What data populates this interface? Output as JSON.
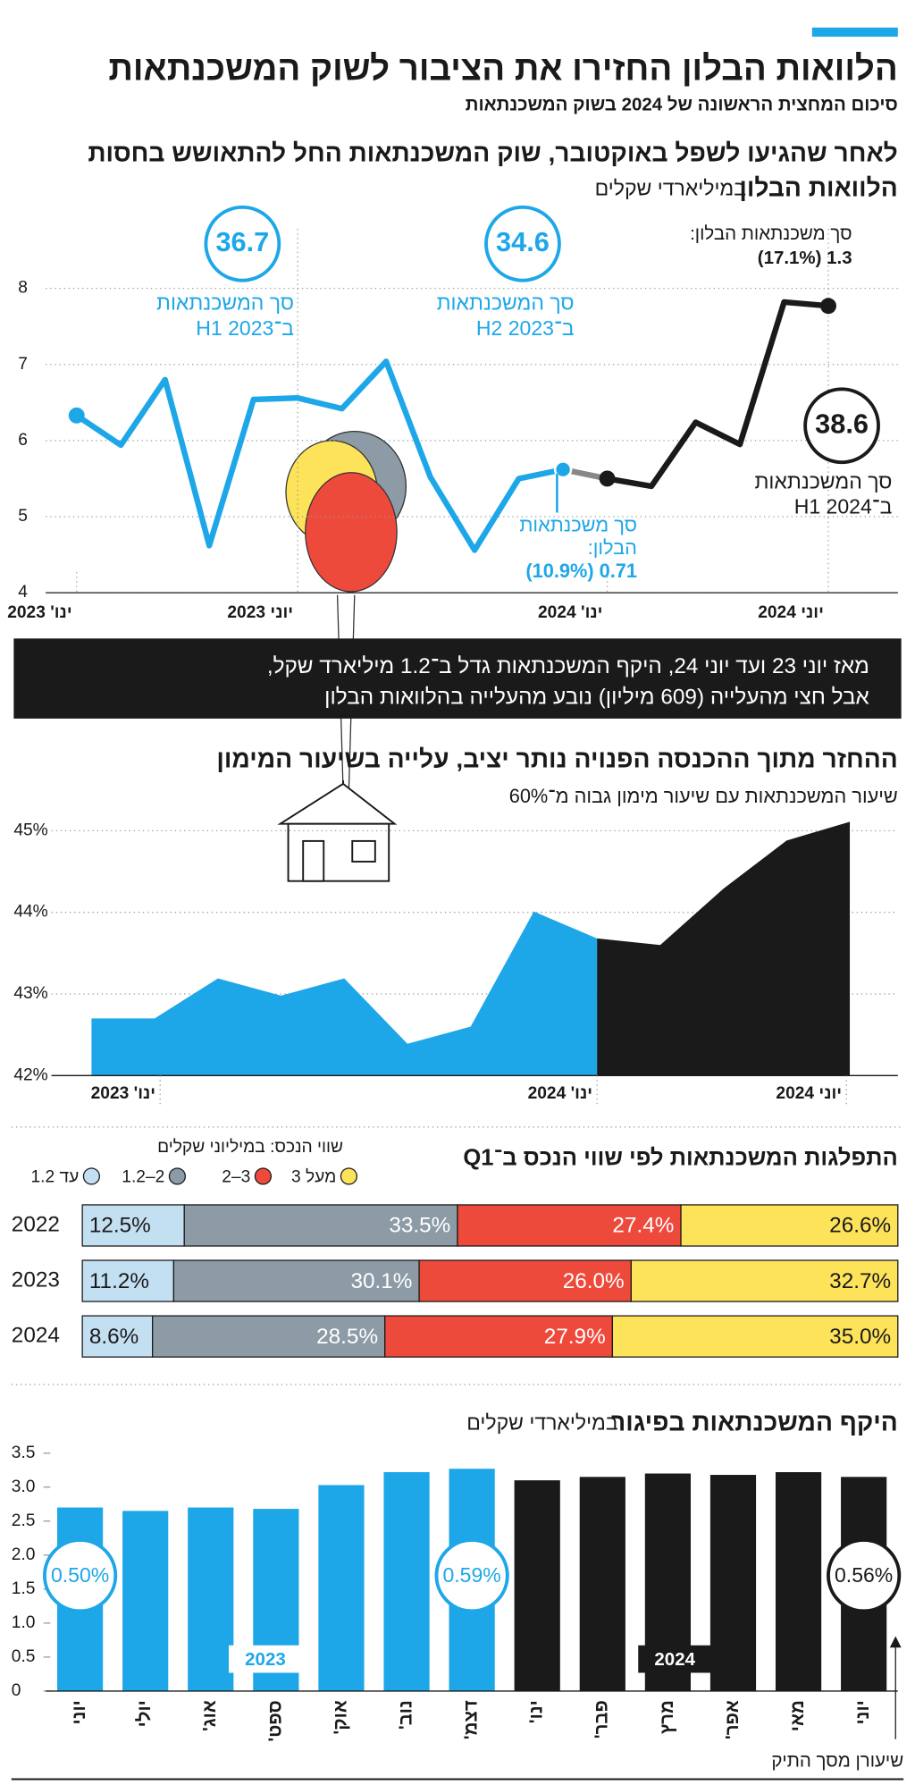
{
  "header": {
    "title": "הלוואות הבלון החזירו את הציבור לשוק המשכנתאות",
    "subtitle": "סיכום המחצית הראשונה של 2024 בשוק המשכנתאות"
  },
  "banner": [
    "מאז יוני 23 ועד יוני 24,  היקף המשכנתאות גדל ב־1.2 מיליארד שקל,",
    "אבל חצי מהעלייה  (609 מיליון) נובע מהעלייה בהלוואות הבלון"
  ],
  "chart_data": [
    {
      "type": "line",
      "title": [
        "לאחר שהגיעו לשפל באוקטובר, שוק המשכנתאות החל להתאושש בחסות",
        "הלוואות הבלון"
      ],
      "subtitle": "במיליארדי שקלים",
      "categories": [
        "ינו' 2023",
        null,
        null,
        null,
        null,
        "יוני 2023",
        null,
        null,
        null,
        null,
        null,
        null,
        "ינו' 2024",
        null,
        null,
        null,
        null,
        "יוני 2024"
      ],
      "series": [
        {
          "color": "#1ea7e8",
          "values": [
            6.33,
            5.94,
            6.8,
            4.62,
            6.54,
            6.56,
            6.42,
            7.04,
            5.52,
            4.56,
            5.5,
            5.62,
            null,
            null,
            null,
            null,
            null,
            null
          ]
        },
        {
          "color": "#1a1a1a",
          "values": [
            null,
            null,
            null,
            null,
            null,
            null,
            null,
            null,
            null,
            null,
            null,
            null,
            5.5,
            5.4,
            6.24,
            5.95,
            7.82,
            7.77
          ]
        }
      ],
      "ylim": [
        4,
        8
      ],
      "yticks": [
        4,
        5,
        6,
        7,
        8
      ],
      "grid": true,
      "annotations": [
        {
          "value": "36.7",
          "label": [
            "סך המשכנתאות",
            "ב־H1 2023"
          ]
        },
        {
          "value": "34.6",
          "label": [
            "סך המשכנתאות",
            "ב־H2 2023"
          ]
        },
        {
          "value": "38.6",
          "label": [
            "סך המשכנתאות",
            "ב־H1 2024"
          ]
        },
        {
          "label": [
            "סך משכנתאות הבלון:",
            "1.3 (17.1%)"
          ]
        },
        {
          "label": [
            "סך משכנתאות",
            "הבלון:",
            "0.71 (10.9%)"
          ]
        }
      ]
    },
    {
      "type": "area",
      "title": "ההחזר מתוך ההכנסה הפנויה נותר יציב, עלייה בשיעור המימון",
      "subtitle": "שיעור המשכנתאות עם שיעור מימון גבוה מ־60%",
      "categories": [
        "ינו' 2023",
        null,
        null,
        null,
        null,
        null,
        null,
        null,
        "ינו' 2024",
        null,
        null,
        null,
        "יוני 2024"
      ],
      "series": [
        {
          "color": "#1ea7e8",
          "values": [
            42.7,
            42.7,
            43.19,
            42.98,
            43.19,
            42.39,
            42.6,
            44.01,
            43.68,
            null,
            null,
            null,
            null
          ]
        },
        {
          "color": "#1a1a1a",
          "values": [
            null,
            null,
            null,
            null,
            null,
            null,
            null,
            null,
            43.68,
            43.6,
            44.29,
            44.88,
            45.11
          ]
        }
      ],
      "ylim": [
        42,
        45
      ],
      "yticks": [
        {
          "value": 42,
          "label": "42%"
        },
        {
          "value": 43,
          "label": "43%"
        },
        {
          "value": 44,
          "label": "44%"
        },
        {
          "value": 45,
          "label": "45%"
        }
      ],
      "grid": true
    },
    {
      "type": "stacked_bar",
      "title": "התפלגות המשכנתאות לפי שווי הנכס ב־Q1",
      "legend_title": "שווי הנכס: במיליוני שקלים",
      "categories": [
        "2022",
        "2023",
        "2024"
      ],
      "series": [
        {
          "name": "עד 1.2",
          "color": "#c3dff2",
          "values": [
            12.5,
            11.2,
            8.6
          ],
          "value_labels": [
            "12.5%",
            "11.2%",
            "8.6%"
          ]
        },
        {
          "name": "2–1.2",
          "color": "#8c9ba6",
          "values": [
            33.5,
            30.1,
            28.5
          ],
          "value_labels": [
            "33.5%",
            "30.1%",
            "28.5%"
          ]
        },
        {
          "name": "3–2",
          "color": "#ee4a3c",
          "values": [
            27.4,
            26.0,
            27.9
          ],
          "value_labels": [
            "27.4%",
            "26.0%",
            "27.9%"
          ]
        },
        {
          "name": "מעל 3",
          "color": "#fde35a",
          "values": [
            26.6,
            32.7,
            35.0
          ],
          "value_labels": [
            "26.6%",
            "32.7%",
            "35.0%"
          ]
        }
      ]
    },
    {
      "type": "bar",
      "title": "היקף המשכנתאות בפיגור",
      "subtitle": "במיליארדי שקלים",
      "categories": [
        "יוני",
        "יולי",
        "אוג'",
        "ספט'",
        "אוק'",
        "נוב'",
        "דצמ'",
        "ינו'",
        "פבר'",
        "מרץ",
        "אפר'",
        "מאי",
        "יוני"
      ],
      "values": [
        2.7,
        2.65,
        2.7,
        2.68,
        3.03,
        3.22,
        3.27,
        3.1,
        3.15,
        3.2,
        3.18,
        3.22,
        3.15
      ],
      "colors": [
        "#1ea7e8",
        "#1ea7e8",
        "#1ea7e8",
        "#1ea7e8",
        "#1ea7e8",
        "#1ea7e8",
        "#1ea7e8",
        "#1a1a1a",
        "#1a1a1a",
        "#1a1a1a",
        "#1a1a1a",
        "#1a1a1a",
        "#1a1a1a"
      ],
      "ylim": [
        0,
        3.5
      ],
      "yticks": [
        0,
        0.5,
        {
          "value": 1,
          "label": "1.0"
        },
        1.5,
        {
          "value": 2,
          "label": "2.0"
        },
        2.5,
        {
          "value": 3,
          "label": "3.0"
        },
        3.5
      ],
      "groups": [
        "2023",
        "2024"
      ],
      "annotations": [
        "0.50%",
        "0.59%",
        "0.56%"
      ],
      "note": "שיעורן מסך התיק"
    }
  ]
}
